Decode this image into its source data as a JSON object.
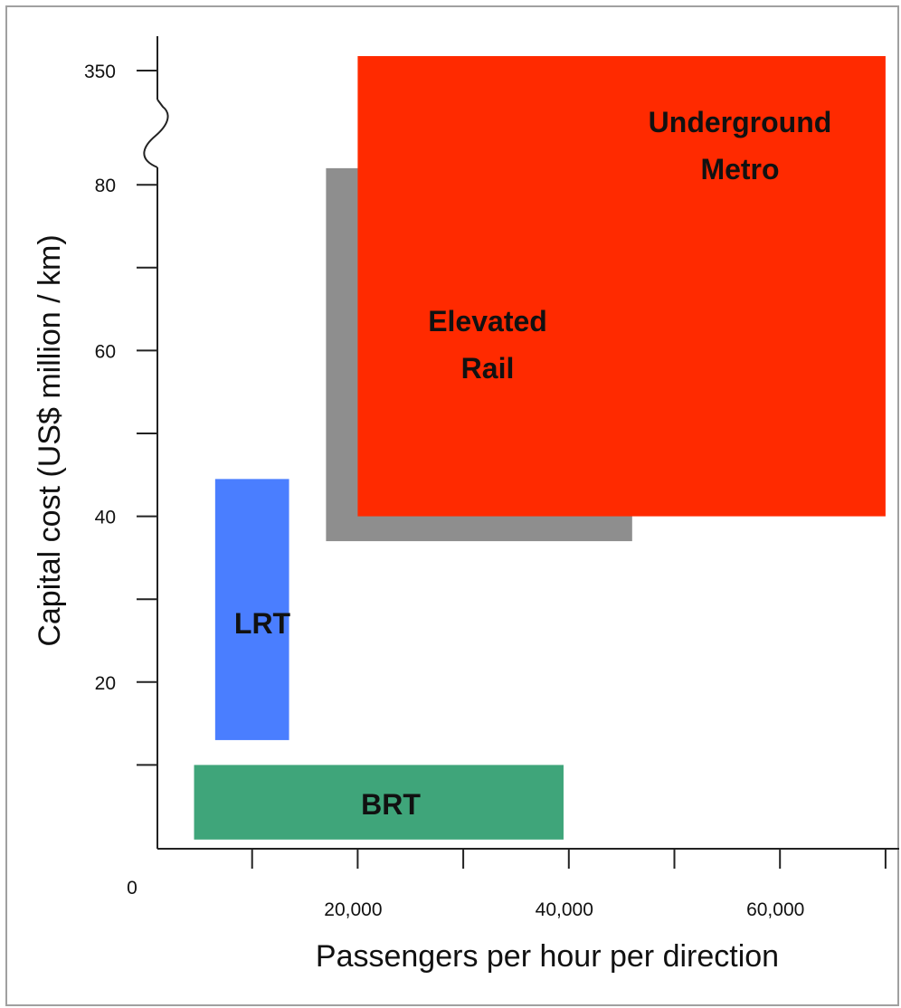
{
  "chart_data": {
    "type": "range-rectangles",
    "title": "",
    "xlabel": "Passengers per hour per direction",
    "ylabel": "Capital cost  (US$ million / km)",
    "origin_label": "0",
    "x_ticks": [
      {
        "value": 10000,
        "label": ""
      },
      {
        "value": 20000,
        "label": "20,000"
      },
      {
        "value": 30000,
        "label": ""
      },
      {
        "value": 40000,
        "label": "40,000"
      },
      {
        "value": 50000,
        "label": ""
      },
      {
        "value": 60000,
        "label": "60,000"
      },
      {
        "value": 70000,
        "label": ""
      }
    ],
    "y_ticks": [
      {
        "value": 10,
        "label": ""
      },
      {
        "value": 20,
        "label": "20"
      },
      {
        "value": 30,
        "label": ""
      },
      {
        "value": 40,
        "label": "40"
      },
      {
        "value": 50,
        "label": ""
      },
      {
        "value": 60,
        "label": "60"
      },
      {
        "value": 70,
        "label": ""
      },
      {
        "value": 80,
        "label": "80"
      },
      {
        "value": 350,
        "label": "350"
      }
    ],
    "y_axis_break": {
      "between": [
        80,
        350
      ]
    },
    "xlim": [
      0,
      70000
    ],
    "regions": [
      {
        "name": "BRT",
        "label_lines": [
          "BRT"
        ],
        "x_min": 4500,
        "x_max": 39500,
        "y_min": 1,
        "y_max": 10,
        "color": "#3fa57a"
      },
      {
        "name": "LRT",
        "label_lines": [
          "LRT"
        ],
        "x_min": 6500,
        "x_max": 13500,
        "y_min": 13,
        "y_max": 44.5,
        "color": "#4a7eff"
      },
      {
        "name": "Elevated Rail",
        "label_lines": [
          "Elevated",
          "Rail"
        ],
        "x_min": 17000,
        "x_max": 46000,
        "y_min": 37,
        "y_max": 82,
        "color": "#8e8e8e"
      },
      {
        "name": "Underground Metro",
        "label_lines": [
          "Underground",
          "Metro"
        ],
        "x_min": 20000,
        "x_max": 70000,
        "y_min": 40,
        "y_max": 350,
        "color": "#ff2a00"
      }
    ]
  }
}
